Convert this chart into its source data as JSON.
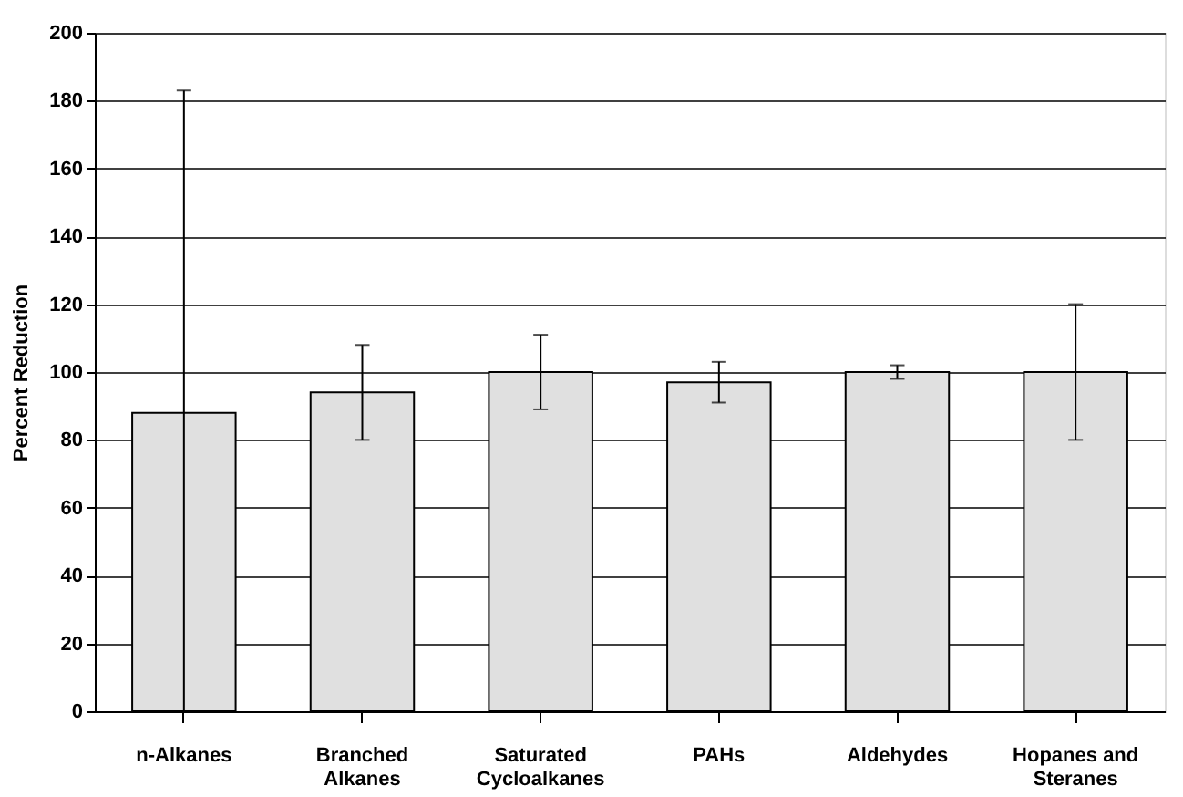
{
  "chart_data": {
    "type": "bar",
    "ylabel": "Percent Reduction",
    "categories": [
      "n-Alkanes",
      "Branched Alkanes",
      "Saturated Cycloalkanes",
      "PAHs",
      "Aldehydes",
      "Hopanes and Steranes"
    ],
    "values": [
      88,
      94,
      100,
      97,
      100,
      100
    ],
    "errors": [
      [
        0,
        183
      ],
      [
        80,
        108
      ],
      [
        89,
        111
      ],
      [
        91,
        103
      ],
      [
        98,
        102
      ],
      [
        80,
        120
      ]
    ],
    "color": "#e0e0e0",
    "ylim": [
      0,
      200
    ],
    "yticks": [
      0,
      20,
      40,
      60,
      80,
      100,
      120,
      140,
      160,
      180,
      200
    ],
    "grid": "y"
  }
}
